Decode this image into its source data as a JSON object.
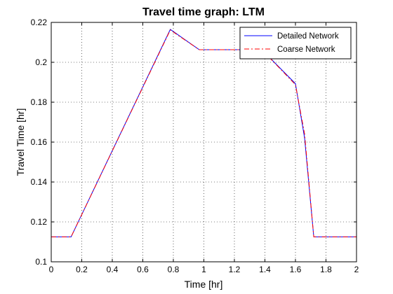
{
  "chart_data": {
    "type": "line",
    "title": "Travel time graph: LTM",
    "xlabel": "Time [hr]",
    "ylabel": "Travel Time [hr]",
    "xlim": [
      0,
      2
    ],
    "ylim": [
      0.1,
      0.22
    ],
    "xticks": [
      "0",
      "0.2",
      "0.4",
      "0.6",
      "0.8",
      "1",
      "1.2",
      "1.4",
      "1.6",
      "1.8",
      "2"
    ],
    "yticks": [
      "0.1",
      "0.12",
      "0.14",
      "0.16",
      "0.18",
      "0.2",
      "0.22"
    ],
    "grid": true,
    "legend_position": "top-right",
    "series": [
      {
        "name": "Detailed Network",
        "color": "#0000ff",
        "style": "solid",
        "x": [
          0,
          0.13,
          0.78,
          0.97,
          1.38,
          1.6,
          1.66,
          1.72,
          2.0
        ],
        "y": [
          0.1125,
          0.1125,
          0.2165,
          0.2063,
          0.2063,
          0.1893,
          0.162,
          0.1125,
          0.1125
        ]
      },
      {
        "name": "Coarse Network",
        "color": "#ff0000",
        "style": "dashdot",
        "x": [
          0,
          0.13,
          0.78,
          0.97,
          1.38,
          1.6,
          1.66,
          1.72,
          2.0
        ],
        "y": [
          0.1125,
          0.1125,
          0.2162,
          0.2063,
          0.2063,
          0.1888,
          0.164,
          0.1125,
          0.1125
        ]
      }
    ]
  }
}
